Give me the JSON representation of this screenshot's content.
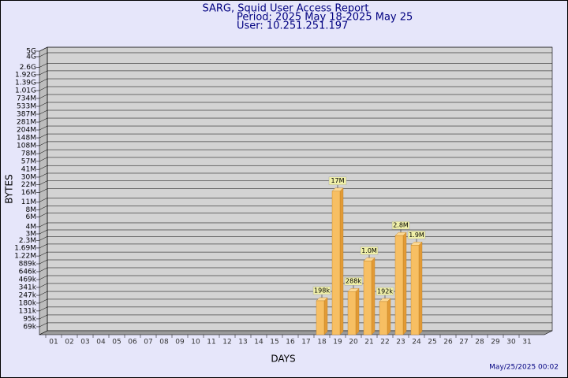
{
  "chart_data": {
    "type": "bar",
    "title": "SARG, Squid User Access Report",
    "subtitle": "Period: 2025 May 18-2025 May 25",
    "user": "User: 10.251.251.197",
    "y_label": "BYTES",
    "x_label": "DAYS",
    "footer": "May/25/2025 00:02",
    "log_scale": true,
    "grid": true,
    "color": "#f7bf63",
    "side_color": "#e29a36",
    "categories": [
      "01",
      "02",
      "03",
      "04",
      "05",
      "06",
      "07",
      "08",
      "09",
      "10",
      "11",
      "12",
      "13",
      "14",
      "15",
      "16",
      "17",
      "18",
      "19",
      "20",
      "21",
      "22",
      "23",
      "24",
      "25",
      "26",
      "27",
      "28",
      "29",
      "30",
      "31"
    ],
    "values": [
      null,
      null,
      null,
      null,
      null,
      null,
      null,
      null,
      null,
      null,
      null,
      null,
      null,
      null,
      null,
      null,
      null,
      198000,
      17000000,
      288000,
      1000000,
      192000,
      2800000,
      1900000,
      null,
      null,
      null,
      null,
      null,
      null,
      null
    ],
    "value_labels": [
      null,
      null,
      null,
      null,
      null,
      null,
      null,
      null,
      null,
      null,
      null,
      null,
      null,
      null,
      null,
      null,
      null,
      "198k",
      "17M",
      "288k",
      "1.0M",
      "192k",
      "2.8M",
      "1.9M",
      null,
      null,
      null,
      null,
      null,
      null,
      null
    ],
    "ylim": [
      50000,
      5000000000
    ],
    "yticks": [
      {
        "value": 5000000000,
        "label": "5G"
      },
      {
        "value": 4000000000,
        "label": "4G"
      },
      {
        "value": 2600000000,
        "label": "2.6G"
      },
      {
        "value": 1920000000,
        "label": "1.92G"
      },
      {
        "value": 1390000000,
        "label": "1.39G"
      },
      {
        "value": 1010000000,
        "label": "1.01G"
      },
      {
        "value": 734000000,
        "label": "734M"
      },
      {
        "value": 533000000,
        "label": "533M"
      },
      {
        "value": 387000000,
        "label": "387M"
      },
      {
        "value": 281000000,
        "label": "281M"
      },
      {
        "value": 204000000,
        "label": "204M"
      },
      {
        "value": 148000000,
        "label": "148M"
      },
      {
        "value": 108000000,
        "label": "108M"
      },
      {
        "value": 78000000,
        "label": "78M"
      },
      {
        "value": 57000000,
        "label": "57M"
      },
      {
        "value": 41000000,
        "label": "41M"
      },
      {
        "value": 30000000,
        "label": "30M"
      },
      {
        "value": 22000000,
        "label": "22M"
      },
      {
        "value": 16000000,
        "label": "16M"
      },
      {
        "value": 11000000,
        "label": "11M"
      },
      {
        "value": 8000000,
        "label": "8M"
      },
      {
        "value": 6000000,
        "label": "6M"
      },
      {
        "value": 4000000,
        "label": "4M"
      },
      {
        "value": 3000000,
        "label": "3M"
      },
      {
        "value": 2300000,
        "label": "2.3M"
      },
      {
        "value": 1690000,
        "label": "1.69M"
      },
      {
        "value": 1220000,
        "label": "1.22M"
      },
      {
        "value": 889000,
        "label": "889k"
      },
      {
        "value": 646000,
        "label": "646k"
      },
      {
        "value": 469000,
        "label": "469k"
      },
      {
        "value": 341000,
        "label": "341k"
      },
      {
        "value": 247000,
        "label": "247k"
      },
      {
        "value": 180000,
        "label": "180k"
      },
      {
        "value": 131000,
        "label": "131k"
      },
      {
        "value": 95000,
        "label": "95k"
      },
      {
        "value": 69000,
        "label": "69k"
      }
    ]
  }
}
